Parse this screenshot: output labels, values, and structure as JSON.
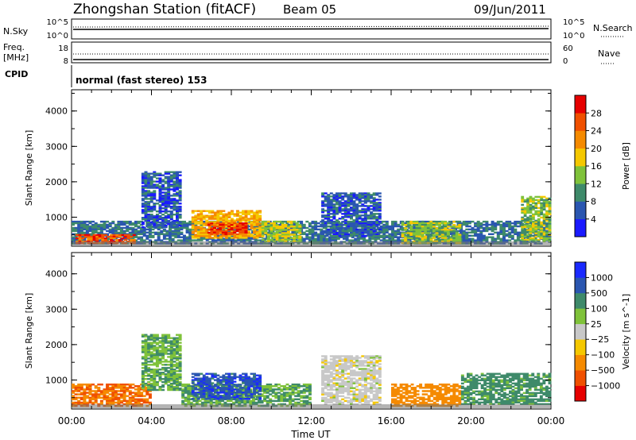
{
  "header": {
    "title": "Zhongshan Station (fitACF)",
    "beam": "Beam 05",
    "date": "09/Jun/2011"
  },
  "mini_panels": {
    "nsky_label": "N.Sky",
    "nsky_ticks": [
      "10^5",
      "10^0"
    ],
    "nsearch_label": "N.Search",
    "nsearch_ticks": [
      "10^5",
      "10^0"
    ],
    "freq_label_1": "Freq.",
    "freq_label_2": "[MHz]",
    "freq_ticks": [
      "18",
      "8"
    ],
    "nave_label": "Nave",
    "nave_ticks": [
      "60",
      "0"
    ],
    "cpid_label": "CPID",
    "cpid_text": "normal (fast stereo) 153"
  },
  "colors": {
    "power_scale": [
      "#1a1aff",
      "#2a56b0",
      "#3e8a6a",
      "#7fc23a",
      "#f5c800",
      "#f58a00",
      "#f05000",
      "#e60000"
    ],
    "velocity_scale": [
      "#e60000",
      "#f05000",
      "#f58a00",
      "#f5c800",
      "#c8c8c8",
      "#7fc23a",
      "#3e8a6a",
      "#2a56b0",
      "#1a2aff"
    ]
  },
  "chart_data": [
    {
      "type": "heatmap",
      "name": "power",
      "ylabel": "Slant Range [km]",
      "xlabel": "Time UT",
      "x_ticks": [
        "00:00",
        "04:00",
        "08:00",
        "12:00",
        "16:00",
        "20:00",
        "00:00"
      ],
      "y_ticks": [
        "1000",
        "2000",
        "3000",
        "4000"
      ],
      "ylim": [
        180,
        4600
      ],
      "xlim_hours": [
        0,
        24
      ],
      "colorbar_label": "Power [dB]",
      "colorbar_ticks": [
        "4",
        "8",
        "12",
        "16",
        "20",
        "24",
        "28"
      ],
      "colorbar_range": [
        0,
        32
      ],
      "regions": [
        {
          "t0": 0.0,
          "t1": 24.0,
          "r0": 240,
          "r1": 900,
          "level": 8
        },
        {
          "t0": 0.2,
          "t1": 3.2,
          "r0": 250,
          "r1": 520,
          "level": 26
        },
        {
          "t0": 6.0,
          "t1": 9.5,
          "r0": 400,
          "r1": 1200,
          "level": 20
        },
        {
          "t0": 6.8,
          "t1": 8.8,
          "r0": 500,
          "r1": 850,
          "level": 28
        },
        {
          "t0": 3.5,
          "t1": 5.5,
          "r0": 700,
          "r1": 2300,
          "level": 6
        },
        {
          "t0": 9.5,
          "t1": 11.5,
          "r0": 300,
          "r1": 900,
          "level": 16
        },
        {
          "t0": 12.5,
          "t1": 15.5,
          "r0": 450,
          "r1": 1700,
          "level": 6
        },
        {
          "t0": 16.5,
          "t1": 19.5,
          "r0": 250,
          "r1": 900,
          "level": 14
        },
        {
          "t0": 22.5,
          "t1": 24.0,
          "r0": 300,
          "r1": 1600,
          "level": 14
        }
      ]
    },
    {
      "type": "heatmap",
      "name": "velocity",
      "ylabel": "Slant Range [km]",
      "xlabel": "Time UT",
      "x_ticks": [
        "00:00",
        "04:00",
        "08:00",
        "12:00",
        "16:00",
        "20:00",
        "00:00"
      ],
      "y_ticks": [
        "1000",
        "2000",
        "3000",
        "4000"
      ],
      "ylim": [
        180,
        4600
      ],
      "xlim_hours": [
        0,
        24
      ],
      "colorbar_label": "Velocity [m s^-1]",
      "colorbar_ticks": [
        "1000",
        "500",
        "100",
        "25",
        "−25",
        "−100",
        "−500",
        "−1000"
      ],
      "colorbar_range": [
        -1000,
        1000
      ],
      "regions": [
        {
          "t0": 0.0,
          "t1": 4.0,
          "r0": 250,
          "r1": 900,
          "level": -500
        },
        {
          "t0": 3.5,
          "t1": 5.5,
          "r0": 700,
          "r1": 2300,
          "level": 100
        },
        {
          "t0": 5.5,
          "t1": 12.0,
          "r0": 250,
          "r1": 900,
          "level": 100
        },
        {
          "t0": 6.0,
          "t1": 9.5,
          "r0": 450,
          "r1": 1200,
          "level": 800
        },
        {
          "t0": 12.5,
          "t1": 15.5,
          "r0": 300,
          "r1": 1700,
          "level": 0
        },
        {
          "t0": 16.0,
          "t1": 19.5,
          "r0": 250,
          "r1": 900,
          "level": -200
        },
        {
          "t0": 19.5,
          "t1": 24.0,
          "r0": 300,
          "r1": 1200,
          "level": 150
        }
      ]
    }
  ]
}
